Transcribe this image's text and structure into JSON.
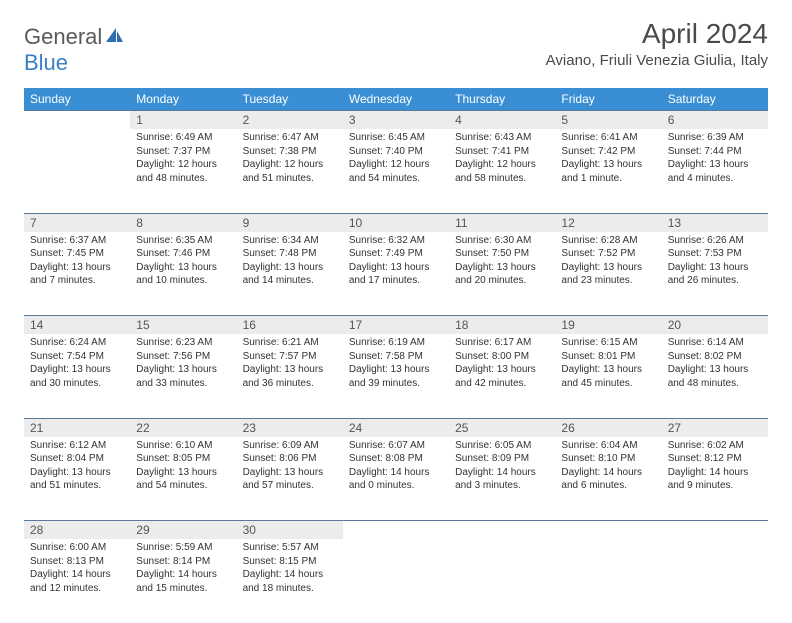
{
  "logo": {
    "part1": "General",
    "part2": "Blue"
  },
  "title": "April 2024",
  "location": "Aviano, Friuli Venezia Giulia, Italy",
  "colors": {
    "header_bg": "#3a8fd4",
    "header_text": "#ffffff",
    "daynum_bg": "#ececec",
    "border": "#5a7a9a",
    "logo_gray": "#5a5a5a",
    "logo_blue": "#3a7fc4"
  },
  "weekdays": [
    "Sunday",
    "Monday",
    "Tuesday",
    "Wednesday",
    "Thursday",
    "Friday",
    "Saturday"
  ],
  "weeks": [
    [
      null,
      {
        "n": "1",
        "sr": "6:49 AM",
        "ss": "7:37 PM",
        "dl": "12 hours and 48 minutes."
      },
      {
        "n": "2",
        "sr": "6:47 AM",
        "ss": "7:38 PM",
        "dl": "12 hours and 51 minutes."
      },
      {
        "n": "3",
        "sr": "6:45 AM",
        "ss": "7:40 PM",
        "dl": "12 hours and 54 minutes."
      },
      {
        "n": "4",
        "sr": "6:43 AM",
        "ss": "7:41 PM",
        "dl": "12 hours and 58 minutes."
      },
      {
        "n": "5",
        "sr": "6:41 AM",
        "ss": "7:42 PM",
        "dl": "13 hours and 1 minute."
      },
      {
        "n": "6",
        "sr": "6:39 AM",
        "ss": "7:44 PM",
        "dl": "13 hours and 4 minutes."
      }
    ],
    [
      {
        "n": "7",
        "sr": "6:37 AM",
        "ss": "7:45 PM",
        "dl": "13 hours and 7 minutes."
      },
      {
        "n": "8",
        "sr": "6:35 AM",
        "ss": "7:46 PM",
        "dl": "13 hours and 10 minutes."
      },
      {
        "n": "9",
        "sr": "6:34 AM",
        "ss": "7:48 PM",
        "dl": "13 hours and 14 minutes."
      },
      {
        "n": "10",
        "sr": "6:32 AM",
        "ss": "7:49 PM",
        "dl": "13 hours and 17 minutes."
      },
      {
        "n": "11",
        "sr": "6:30 AM",
        "ss": "7:50 PM",
        "dl": "13 hours and 20 minutes."
      },
      {
        "n": "12",
        "sr": "6:28 AM",
        "ss": "7:52 PM",
        "dl": "13 hours and 23 minutes."
      },
      {
        "n": "13",
        "sr": "6:26 AM",
        "ss": "7:53 PM",
        "dl": "13 hours and 26 minutes."
      }
    ],
    [
      {
        "n": "14",
        "sr": "6:24 AM",
        "ss": "7:54 PM",
        "dl": "13 hours and 30 minutes."
      },
      {
        "n": "15",
        "sr": "6:23 AM",
        "ss": "7:56 PM",
        "dl": "13 hours and 33 minutes."
      },
      {
        "n": "16",
        "sr": "6:21 AM",
        "ss": "7:57 PM",
        "dl": "13 hours and 36 minutes."
      },
      {
        "n": "17",
        "sr": "6:19 AM",
        "ss": "7:58 PM",
        "dl": "13 hours and 39 minutes."
      },
      {
        "n": "18",
        "sr": "6:17 AM",
        "ss": "8:00 PM",
        "dl": "13 hours and 42 minutes."
      },
      {
        "n": "19",
        "sr": "6:15 AM",
        "ss": "8:01 PM",
        "dl": "13 hours and 45 minutes."
      },
      {
        "n": "20",
        "sr": "6:14 AM",
        "ss": "8:02 PM",
        "dl": "13 hours and 48 minutes."
      }
    ],
    [
      {
        "n": "21",
        "sr": "6:12 AM",
        "ss": "8:04 PM",
        "dl": "13 hours and 51 minutes."
      },
      {
        "n": "22",
        "sr": "6:10 AM",
        "ss": "8:05 PM",
        "dl": "13 hours and 54 minutes."
      },
      {
        "n": "23",
        "sr": "6:09 AM",
        "ss": "8:06 PM",
        "dl": "13 hours and 57 minutes."
      },
      {
        "n": "24",
        "sr": "6:07 AM",
        "ss": "8:08 PM",
        "dl": "14 hours and 0 minutes."
      },
      {
        "n": "25",
        "sr": "6:05 AM",
        "ss": "8:09 PM",
        "dl": "14 hours and 3 minutes."
      },
      {
        "n": "26",
        "sr": "6:04 AM",
        "ss": "8:10 PM",
        "dl": "14 hours and 6 minutes."
      },
      {
        "n": "27",
        "sr": "6:02 AM",
        "ss": "8:12 PM",
        "dl": "14 hours and 9 minutes."
      }
    ],
    [
      {
        "n": "28",
        "sr": "6:00 AM",
        "ss": "8:13 PM",
        "dl": "14 hours and 12 minutes."
      },
      {
        "n": "29",
        "sr": "5:59 AM",
        "ss": "8:14 PM",
        "dl": "14 hours and 15 minutes."
      },
      {
        "n": "30",
        "sr": "5:57 AM",
        "ss": "8:15 PM",
        "dl": "14 hours and 18 minutes."
      },
      null,
      null,
      null,
      null
    ]
  ],
  "labels": {
    "sunrise": "Sunrise:",
    "sunset": "Sunset:",
    "daylight": "Daylight:"
  }
}
